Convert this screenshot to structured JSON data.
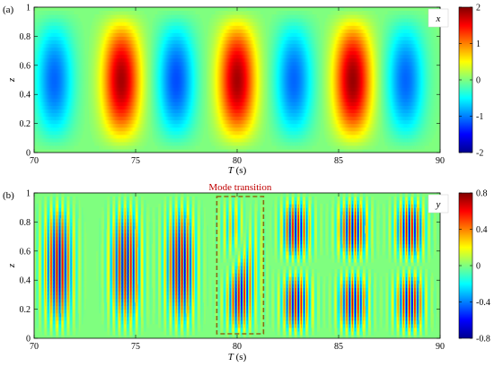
{
  "chart_data": [
    {
      "type": "heatmap",
      "panel_label": "(a)",
      "variable_label": "x",
      "xlabel": "T (s)",
      "ylabel": "z",
      "xlim": [
        70,
        90
      ],
      "ylim": [
        0,
        1
      ],
      "x_ticks": [
        "70",
        "75",
        "80",
        "85",
        "90"
      ],
      "y_ticks": [
        "0",
        "0.2",
        "0.4",
        "0.6",
        "0.8",
        "1"
      ],
      "colorbar_range": [
        -2,
        2
      ],
      "colorbar_ticks": [
        "-2",
        "-1",
        "0",
        "1",
        "2"
      ],
      "lobes": [
        {
          "t_center": 71.0,
          "amplitude": -1.1
        },
        {
          "t_center": 74.3,
          "amplitude": 1.85
        },
        {
          "t_center": 77.0,
          "amplitude": -1.2
        },
        {
          "t_center": 80.0,
          "amplitude": 1.85
        },
        {
          "t_center": 82.8,
          "amplitude": -1.1
        },
        {
          "t_center": 85.7,
          "amplitude": 1.9
        },
        {
          "t_center": 88.3,
          "amplitude": -1.1
        }
      ]
    },
    {
      "type": "heatmap",
      "panel_label": "(b)",
      "variable_label": "y",
      "xlabel": "T (s)",
      "ylabel": "z",
      "xlim": [
        70,
        90
      ],
      "ylim": [
        0,
        1
      ],
      "x_ticks": [
        "70",
        "75",
        "80",
        "85",
        "90"
      ],
      "y_ticks": [
        "0",
        "0.2",
        "0.4",
        "0.6",
        "0.8",
        "1"
      ],
      "colorbar_range": [
        -0.8,
        0.8
      ],
      "colorbar_ticks": [
        "-0.8",
        "-0.4",
        "0",
        "0.4",
        "0.8"
      ],
      "annotation": "Mode transition",
      "annotation_box_t": [
        79.0,
        81.3
      ],
      "bursts": [
        {
          "t_center": 71.2,
          "mode": 1,
          "amplitude": 0.75
        },
        {
          "t_center": 74.5,
          "mode": 1,
          "amplitude": 0.75
        },
        {
          "t_center": 77.2,
          "mode": 1,
          "amplitude": 0.75
        },
        {
          "t_center": 80.2,
          "mode": "transition",
          "amplitude": 0.8
        },
        {
          "t_center": 82.9,
          "mode": 2,
          "amplitude": 0.7
        },
        {
          "t_center": 85.7,
          "mode": 2,
          "amplitude": 0.7
        },
        {
          "t_center": 88.5,
          "mode": 2,
          "amplitude": 0.7
        }
      ]
    }
  ]
}
